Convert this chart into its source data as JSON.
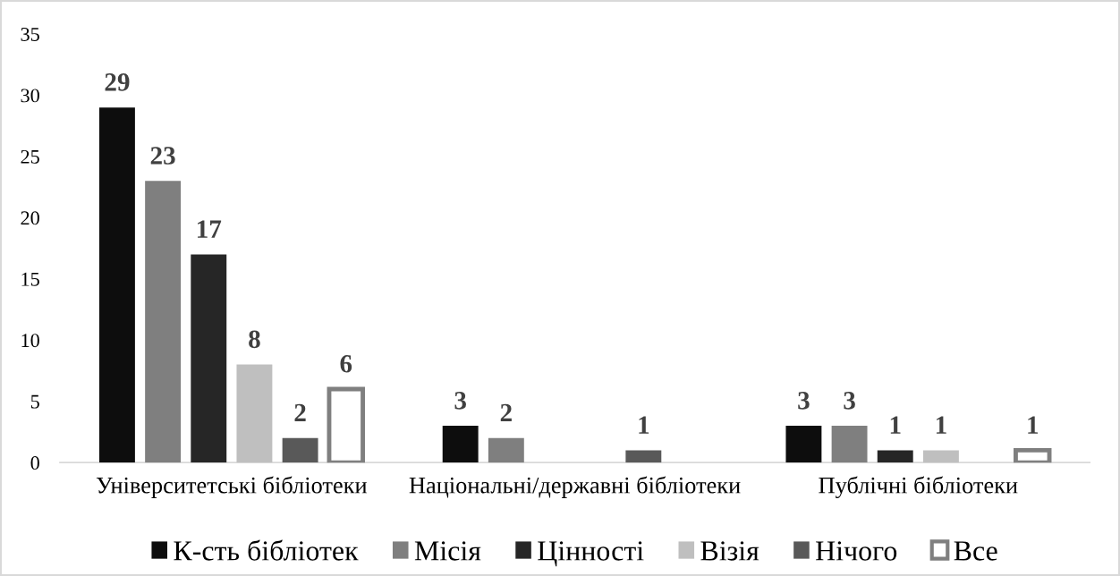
{
  "chart_data": {
    "type": "bar",
    "categories": [
      "Університетські бібліотеки",
      "Національні/державні бібліотеки",
      "Публічні бібліотеки"
    ],
    "series": [
      {
        "name": "К-сть бібліотек",
        "color": "#0d0d0d",
        "values": [
          29,
          3,
          3
        ]
      },
      {
        "name": "Місія",
        "color": "#7f7f7f",
        "values": [
          23,
          2,
          3
        ]
      },
      {
        "name": "Цінності",
        "color": "#262626",
        "values": [
          17,
          null,
          1
        ]
      },
      {
        "name": "Візія",
        "color": "#bfbfbf",
        "values": [
          8,
          null,
          1
        ]
      },
      {
        "name": "Нічого",
        "color": "#595959",
        "values": [
          2,
          1,
          null
        ]
      },
      {
        "name": "Все",
        "color": "#7f7f7f",
        "values": [
          6,
          null,
          1
        ]
      }
    ],
    "ylim": [
      0,
      35
    ],
    "yticks": [
      0,
      5,
      10,
      15,
      20,
      25,
      30,
      35
    ],
    "grid": false,
    "legend": "bottom",
    "data_labels": true
  }
}
